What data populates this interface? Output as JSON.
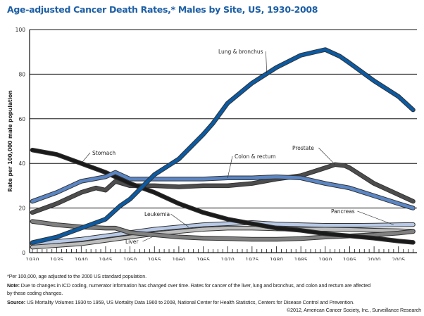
{
  "title": "Age-adjusted Cancer Death Rates,* Males by Site, US, 1930-2008",
  "footnotes": {
    "asterisk": "*Per 100,000, age adjusted to the 2000 US standard population.",
    "note_label": "Note:",
    "note": " Due to changes in ICD coding, numerator information has changed over time. Rates for cancer of the liver, lung and bronchus, and colon and rectum are affected",
    "note_cont": "by these coding changes.",
    "source_label": "Source:",
    "source": " US Mortality Volumes 1930 to 1959, US Mortality Data 1960 to 2008, National Center for Health Statistics, Centers for Disease Control and Prevention.",
    "copyright": "©2012, American Cancer Society, Inc., Surveillance Research"
  },
  "chart_data": {
    "type": "line",
    "title": "Age-adjusted Cancer Death Rates,* Males by Site, US, 1930-2008",
    "xlabel": "",
    "ylabel": "Rate per 100,000 male population",
    "xlim": [
      1930,
      2008
    ],
    "ylim": [
      0,
      100
    ],
    "yticks": [
      0,
      20,
      40,
      60,
      80,
      100
    ],
    "xticks": [
      1930,
      1935,
      1940,
      1945,
      1950,
      1955,
      1960,
      1965,
      1970,
      1975,
      1980,
      1985,
      1990,
      1995,
      2000,
      2005
    ],
    "grid": "horizontal",
    "legend": "none (direct labels)",
    "series": [
      {
        "name": "Lung & bronchus",
        "color": "#0b5aa2",
        "x": [
          1930,
          1935,
          1940,
          1945,
          1948,
          1950,
          1955,
          1960,
          1965,
          1967,
          1970,
          1975,
          1980,
          1985,
          1990,
          1993,
          1995,
          2000,
          2005,
          2008
        ],
        "y": [
          4.5,
          7,
          11,
          15,
          21,
          24,
          35,
          42,
          53,
          58,
          67,
          76,
          83,
          88.5,
          91,
          88,
          85,
          77,
          70,
          64
        ]
      },
      {
        "name": "Stomach",
        "color": "#1a1a1a",
        "x": [
          1930,
          1935,
          1940,
          1945,
          1950,
          1955,
          1960,
          1965,
          1970,
          1975,
          1980,
          1985,
          1990,
          1995,
          2000,
          2005,
          2008
        ],
        "y": [
          46,
          44,
          40,
          36,
          31,
          27,
          22,
          18,
          15,
          13,
          11,
          10,
          8.5,
          7.5,
          6.5,
          5.2,
          4.6
        ]
      },
      {
        "name": "Colon & rectum",
        "color": "#5b86c5",
        "x": [
          1930,
          1935,
          1940,
          1945,
          1947,
          1950,
          1955,
          1960,
          1965,
          1970,
          1975,
          1980,
          1985,
          1990,
          1995,
          2000,
          2005,
          2008
        ],
        "y": [
          23,
          27,
          32,
          34,
          36,
          33,
          33,
          33,
          33,
          33.5,
          33.5,
          34,
          33.5,
          31,
          29,
          25.5,
          22,
          20
        ]
      },
      {
        "name": "Prostate",
        "color": "#4d4d4d",
        "x": [
          1930,
          1935,
          1940,
          1943,
          1945,
          1947,
          1950,
          1955,
          1960,
          1965,
          1970,
          1975,
          1980,
          1985,
          1990,
          1992,
          1994,
          1995,
          2000,
          2005,
          2008
        ],
        "y": [
          18,
          22,
          27,
          29,
          28,
          32,
          30,
          30,
          29.5,
          30,
          30,
          31,
          33,
          34.5,
          38,
          39.5,
          39,
          38,
          31,
          26,
          23
        ]
      },
      {
        "name": "Pancreas",
        "color": "#b7c9e6",
        "x": [
          1930,
          1940,
          1950,
          1955,
          1960,
          1965,
          1970,
          1975,
          1980,
          1985,
          1990,
          1995,
          2000,
          2005,
          2008
        ],
        "y": [
          4,
          6,
          9,
          10.5,
          11.5,
          12.5,
          13,
          13.5,
          12.8,
          12.5,
          12.2,
          12.2,
          12.3,
          12.5,
          12.6
        ]
      },
      {
        "name": "Leukemia",
        "color": "#bdbdbd",
        "x": [
          1930,
          1940,
          1950,
          1955,
          1960,
          1965,
          1970,
          1975,
          1980,
          1985,
          1990,
          1995,
          2000,
          2005,
          2008
        ],
        "y": [
          2.5,
          4,
          7,
          8.5,
          9.5,
          10.5,
          11,
          11,
          10.7,
          10.5,
          10.5,
          10.3,
          10,
          9.8,
          9.6
        ]
      },
      {
        "name": "Liver",
        "color": "#808080",
        "x": [
          1930,
          1935,
          1940,
          1945,
          1947,
          1950,
          1955,
          1960,
          1965,
          1970,
          1975,
          1980,
          1985,
          1990,
          1995,
          2000,
          2005,
          2008
        ],
        "y": [
          14,
          12.5,
          11.5,
          11,
          11,
          9,
          8,
          7,
          6.5,
          6.3,
          6,
          6,
          6.3,
          7,
          7.5,
          8,
          8.8,
          9.5
        ]
      }
    ]
  }
}
